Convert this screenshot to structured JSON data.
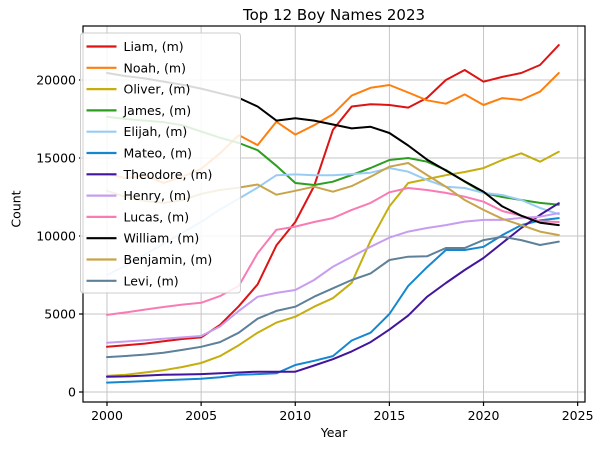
{
  "figure": {
    "title": "Top 12 Boy Names 2023",
    "xlabel": "Year",
    "ylabel": "Count"
  },
  "chart_data": {
    "type": "line",
    "title": "Top 12 Boy Names 2023",
    "xlabel": "Year",
    "ylabel": "Count",
    "grid": true,
    "legend_position": "upper left",
    "x_ticks": [
      2000,
      2005,
      2010,
      2015,
      2020,
      2025
    ],
    "y_ticks": [
      0,
      5000,
      10000,
      15000,
      20000
    ],
    "xlim": [
      1998.3,
      2025.4
    ],
    "ylim": [
      -640,
      23460
    ],
    "x": [
      2000,
      2001,
      2002,
      2003,
      2004,
      2005,
      2006,
      2007,
      2008,
      2009,
      2010,
      2011,
      2012,
      2013,
      2014,
      2015,
      2016,
      2017,
      2018,
      2019,
      2020,
      2021,
      2022,
      2023,
      2024
    ],
    "series": [
      {
        "name": "liam",
        "label": "Liam, (m)",
        "color": "#dc1414",
        "values": [
          2900,
          3000,
          3100,
          3250,
          3400,
          3500,
          4300,
          5500,
          6900,
          9400,
          10900,
          13200,
          16800,
          18300,
          18450,
          18400,
          18230,
          18850,
          20000,
          20640,
          19890,
          20200,
          20450,
          20960,
          22240
        ]
      },
      {
        "name": "noah",
        "label": "Noah, (m)",
        "color": "#ff7f0e",
        "values": [
          14000,
          13700,
          13900,
          13400,
          13800,
          14300,
          15300,
          16470,
          15830,
          17330,
          16500,
          17100,
          17800,
          19000,
          19500,
          19680,
          19200,
          18700,
          18480,
          19080,
          18400,
          18840,
          18720,
          19250,
          20450
        ]
      },
      {
        "name": "oliver",
        "label": "Oliver, (m)",
        "color": "#c5ae0f",
        "values": [
          1030,
          1100,
          1250,
          1400,
          1600,
          1860,
          2300,
          3000,
          3800,
          4450,
          4830,
          5470,
          6010,
          7000,
          9700,
          11900,
          13400,
          13650,
          13900,
          14100,
          14350,
          14870,
          15300,
          14760,
          15400
        ]
      },
      {
        "name": "james",
        "label": "James, (m)",
        "color": "#2e9e20",
        "values": [
          17650,
          17500,
          17400,
          17300,
          17100,
          16700,
          16300,
          15960,
          15500,
          14500,
          13400,
          13270,
          13480,
          13910,
          14360,
          14870,
          15000,
          14760,
          14230,
          13480,
          12760,
          12500,
          12310,
          12120,
          12000
        ]
      },
      {
        "name": "elijah",
        "label": "Elijah, (m)",
        "color": "#99ccf5",
        "values": [
          7500,
          8100,
          8800,
          9500,
          10200,
          10900,
          11700,
          12400,
          13100,
          13900,
          13950,
          13900,
          13900,
          13970,
          14060,
          14360,
          14120,
          13590,
          13160,
          13080,
          12760,
          12630,
          12310,
          11800,
          11400
        ]
      },
      {
        "name": "mateo",
        "label": "Mateo, (m)",
        "color": "#1587d1",
        "values": [
          600,
          650,
          700,
          750,
          800,
          850,
          950,
          1100,
          1150,
          1200,
          1730,
          2000,
          2300,
          3300,
          3800,
          5000,
          6800,
          8000,
          9100,
          9100,
          9310,
          10060,
          10700,
          11000,
          11150
        ]
      },
      {
        "name": "theodore",
        "label": "Theodore, (m)",
        "color": "#42159c",
        "values": [
          980,
          1000,
          1050,
          1100,
          1120,
          1150,
          1200,
          1250,
          1300,
          1300,
          1300,
          1700,
          2100,
          2600,
          3200,
          4000,
          4900,
          6100,
          6990,
          7820,
          8590,
          9550,
          10510,
          11350,
          12100
        ]
      },
      {
        "name": "henry",
        "label": "Henry, (m)",
        "color": "#c79df0",
        "values": [
          3160,
          3240,
          3320,
          3410,
          3500,
          3590,
          4200,
          5200,
          6100,
          6350,
          6540,
          7180,
          8030,
          8670,
          9310,
          9900,
          10280,
          10510,
          10700,
          10920,
          11030,
          11030,
          11160,
          11240,
          11470
        ]
      },
      {
        "name": "lucas",
        "label": "Lucas, (m)",
        "color": "#f97bb4",
        "values": [
          4940,
          5100,
          5280,
          5450,
          5600,
          5720,
          6150,
          6800,
          8900,
          10400,
          10600,
          10900,
          11150,
          11670,
          12120,
          12800,
          13080,
          12950,
          12760,
          12520,
          12200,
          11600,
          11300,
          10950,
          10900
        ]
      },
      {
        "name": "william",
        "label": "William, (m)",
        "color": "#000000",
        "values": [
          20450,
          20250,
          20100,
          19900,
          19700,
          19450,
          19150,
          18850,
          18300,
          17400,
          17550,
          17400,
          17150,
          16900,
          17000,
          16600,
          15800,
          14900,
          14200,
          13500,
          12840,
          11900,
          11300,
          10850,
          10700
        ]
      },
      {
        "name": "benjamin",
        "label": "Benjamin, (m)",
        "color": "#c8a44b",
        "values": [
          12900,
          12500,
          12250,
          12120,
          12300,
          12700,
          12950,
          13100,
          13300,
          12650,
          12900,
          13160,
          12840,
          13200,
          13800,
          14440,
          14680,
          13910,
          13160,
          12310,
          11670,
          11100,
          10700,
          10280,
          10060
        ]
      },
      {
        "name": "levi",
        "label": "Levi, (m)",
        "color": "#5e8099",
        "values": [
          2240,
          2310,
          2400,
          2520,
          2700,
          2900,
          3200,
          3800,
          4700,
          5200,
          5470,
          6110,
          6650,
          7180,
          7600,
          8460,
          8670,
          8700,
          9230,
          9230,
          9740,
          9950,
          9740,
          9420,
          9640
        ]
      }
    ]
  },
  "style": {
    "grid_color": "#c6c6c6",
    "spine_color": "#000000",
    "legend_bg": "#ffffff",
    "legend_border": "#cccccc"
  }
}
